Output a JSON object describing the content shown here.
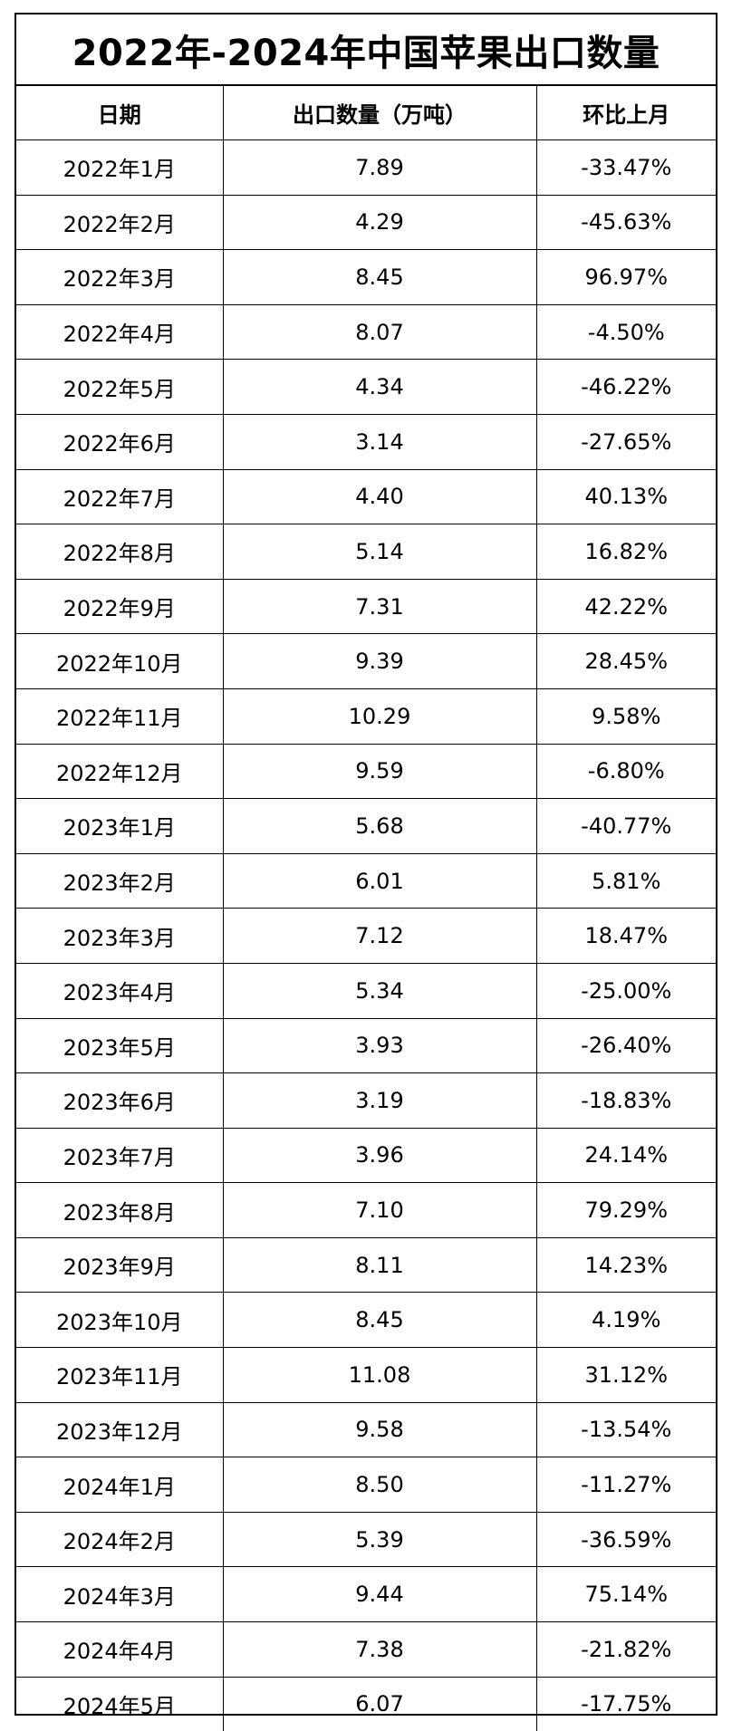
{
  "title": "2022年-2024年中国苹果出口数量",
  "columns": [
    "日期",
    "出口数量（万吨）",
    "环比上月"
  ],
  "rows": [
    {
      "date": "2022年1月",
      "volume": "7.89",
      "mom": "-33.47%"
    },
    {
      "date": "2022年2月",
      "volume": "4.29",
      "mom": "-45.63%"
    },
    {
      "date": "2022年3月",
      "volume": "8.45",
      "mom": "96.97%"
    },
    {
      "date": "2022年4月",
      "volume": "8.07",
      "mom": "-4.50%"
    },
    {
      "date": "2022年5月",
      "volume": "4.34",
      "mom": "-46.22%"
    },
    {
      "date": "2022年6月",
      "volume": "3.14",
      "mom": "-27.65%"
    },
    {
      "date": "2022年7月",
      "volume": "4.40",
      "mom": "40.13%"
    },
    {
      "date": "2022年8月",
      "volume": "5.14",
      "mom": "16.82%"
    },
    {
      "date": "2022年9月",
      "volume": "7.31",
      "mom": "42.22%"
    },
    {
      "date": "2022年10月",
      "volume": "9.39",
      "mom": "28.45%"
    },
    {
      "date": "2022年11月",
      "volume": "10.29",
      "mom": "9.58%"
    },
    {
      "date": "2022年12月",
      "volume": "9.59",
      "mom": "-6.80%"
    },
    {
      "date": "2023年1月",
      "volume": "5.68",
      "mom": "-40.77%"
    },
    {
      "date": "2023年2月",
      "volume": "6.01",
      "mom": "5.81%"
    },
    {
      "date": "2023年3月",
      "volume": "7.12",
      "mom": "18.47%"
    },
    {
      "date": "2023年4月",
      "volume": "5.34",
      "mom": "-25.00%"
    },
    {
      "date": "2023年5月",
      "volume": "3.93",
      "mom": "-26.40%"
    },
    {
      "date": "2023年6月",
      "volume": "3.19",
      "mom": "-18.83%"
    },
    {
      "date": "2023年7月",
      "volume": "3.96",
      "mom": "24.14%"
    },
    {
      "date": "2023年8月",
      "volume": "7.10",
      "mom": "79.29%"
    },
    {
      "date": "2023年9月",
      "volume": "8.11",
      "mom": "14.23%"
    },
    {
      "date": "2023年10月",
      "volume": "8.45",
      "mom": "4.19%"
    },
    {
      "date": "2023年11月",
      "volume": "11.08",
      "mom": "31.12%"
    },
    {
      "date": "2023年12月",
      "volume": "9.58",
      "mom": "-13.54%"
    },
    {
      "date": "2024年1月",
      "volume": "8.50",
      "mom": "-11.27%"
    },
    {
      "date": "2024年2月",
      "volume": "5.39",
      "mom": "-36.59%"
    },
    {
      "date": "2024年3月",
      "volume": "9.44",
      "mom": "75.14%"
    },
    {
      "date": "2024年4月",
      "volume": "7.38",
      "mom": "-21.82%"
    },
    {
      "date": "2024年5月",
      "volume": "6.07",
      "mom": "-17.75%"
    }
  ]
}
